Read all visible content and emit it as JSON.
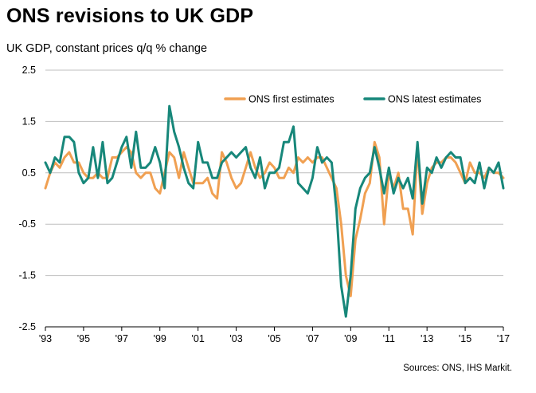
{
  "header": {
    "title": "ONS revisions to UK GDP",
    "subtitle": "UK GDP, constant prices q/q % change"
  },
  "footer": {
    "source": "Sources: ONS, IHS Markit."
  },
  "colors": {
    "first": "#F0A052",
    "latest": "#17877A",
    "grid": "#bfbfbf"
  },
  "chart_data": {
    "type": "line",
    "title": "ONS revisions to UK GDP",
    "ylabel": "UK GDP, constant prices q/q % change",
    "ylim": [
      -2.5,
      2.5
    ],
    "yticks": [
      "2.5",
      "1.5",
      "0.5",
      "-0.5",
      "-1.5",
      "-2.5"
    ],
    "xlim": [
      1993,
      2017
    ],
    "xticks": [
      {
        "value": 1993,
        "label": "'93"
      },
      {
        "value": 1995,
        "label": "'95"
      },
      {
        "value": 1997,
        "label": "'97"
      },
      {
        "value": 1999,
        "label": "'99"
      },
      {
        "value": 2001,
        "label": "'01"
      },
      {
        "value": 2003,
        "label": "'03"
      },
      {
        "value": 2005,
        "label": "'05"
      },
      {
        "value": 2007,
        "label": "'07"
      },
      {
        "value": 2009,
        "label": "'09"
      },
      {
        "value": 2011,
        "label": "'11"
      },
      {
        "value": 2013,
        "label": "'13"
      },
      {
        "value": 2015,
        "label": "'15"
      },
      {
        "value": 2017,
        "label": "'17"
      }
    ],
    "grid": "horizontal",
    "legend_position": "top-right",
    "series": [
      {
        "name": "ONS first estimates",
        "points": [
          [
            1993.0,
            0.2
          ],
          [
            1993.25,
            0.5
          ],
          [
            1993.5,
            0.7
          ],
          [
            1993.75,
            0.6
          ],
          [
            1994.0,
            0.8
          ],
          [
            1994.25,
            0.9
          ],
          [
            1994.5,
            0.7
          ],
          [
            1994.75,
            0.7
          ],
          [
            1995.0,
            0.5
          ],
          [
            1995.25,
            0.4
          ],
          [
            1995.5,
            0.4
          ],
          [
            1995.75,
            0.5
          ],
          [
            1996.0,
            0.4
          ],
          [
            1996.25,
            0.4
          ],
          [
            1996.5,
            0.8
          ],
          [
            1996.75,
            0.8
          ],
          [
            1997.0,
            0.9
          ],
          [
            1997.25,
            1.0
          ],
          [
            1997.5,
            0.9
          ],
          [
            1997.75,
            0.5
          ],
          [
            1998.0,
            0.4
          ],
          [
            1998.25,
            0.5
          ],
          [
            1998.5,
            0.5
          ],
          [
            1998.75,
            0.2
          ],
          [
            1999.0,
            0.1
          ],
          [
            1999.25,
            0.5
          ],
          [
            1999.5,
            0.9
          ],
          [
            1999.75,
            0.8
          ],
          [
            2000.0,
            0.4
          ],
          [
            2000.25,
            0.9
          ],
          [
            2000.5,
            0.6
          ],
          [
            2000.75,
            0.3
          ],
          [
            2001.0,
            0.3
          ],
          [
            2001.25,
            0.3
          ],
          [
            2001.5,
            0.4
          ],
          [
            2001.75,
            0.1
          ],
          [
            2002.0,
            0.0
          ],
          [
            2002.25,
            0.9
          ],
          [
            2002.5,
            0.7
          ],
          [
            2002.75,
            0.4
          ],
          [
            2003.0,
            0.2
          ],
          [
            2003.25,
            0.3
          ],
          [
            2003.5,
            0.6
          ],
          [
            2003.75,
            0.9
          ],
          [
            2004.0,
            0.6
          ],
          [
            2004.25,
            0.4
          ],
          [
            2004.5,
            0.5
          ],
          [
            2004.75,
            0.7
          ],
          [
            2005.0,
            0.6
          ],
          [
            2005.25,
            0.4
          ],
          [
            2005.5,
            0.4
          ],
          [
            2005.75,
            0.6
          ],
          [
            2006.0,
            0.5
          ],
          [
            2006.25,
            0.8
          ],
          [
            2006.5,
            0.7
          ],
          [
            2006.75,
            0.8
          ],
          [
            2007.0,
            0.7
          ],
          [
            2007.25,
            0.8
          ],
          [
            2007.5,
            0.8
          ],
          [
            2007.75,
            0.6
          ],
          [
            2008.0,
            0.4
          ],
          [
            2008.25,
            0.2
          ],
          [
            2008.5,
            -0.5
          ],
          [
            2008.75,
            -1.5
          ],
          [
            2009.0,
            -1.9
          ],
          [
            2009.25,
            -0.8
          ],
          [
            2009.5,
            -0.4
          ],
          [
            2009.75,
            0.1
          ],
          [
            2010.0,
            0.3
          ],
          [
            2010.25,
            1.1
          ],
          [
            2010.5,
            0.8
          ],
          [
            2010.75,
            -0.5
          ],
          [
            2011.0,
            0.5
          ],
          [
            2011.25,
            0.2
          ],
          [
            2011.5,
            0.5
          ],
          [
            2011.75,
            -0.2
          ],
          [
            2012.0,
            -0.2
          ],
          [
            2012.25,
            -0.7
          ],
          [
            2012.5,
            1.0
          ],
          [
            2012.75,
            -0.3
          ],
          [
            2013.0,
            0.3
          ],
          [
            2013.25,
            0.6
          ],
          [
            2013.5,
            0.7
          ],
          [
            2013.75,
            0.7
          ],
          [
            2014.0,
            0.8
          ],
          [
            2014.25,
            0.8
          ],
          [
            2014.5,
            0.7
          ],
          [
            2014.75,
            0.5
          ],
          [
            2015.0,
            0.3
          ],
          [
            2015.25,
            0.7
          ],
          [
            2015.5,
            0.5
          ],
          [
            2015.75,
            0.5
          ],
          [
            2016.0,
            0.4
          ],
          [
            2016.25,
            0.6
          ],
          [
            2016.5,
            0.5
          ],
          [
            2016.75,
            0.5
          ],
          [
            2017.0,
            0.4
          ]
        ]
      },
      {
        "name": "ONS latest estimates",
        "points": [
          [
            1993.0,
            0.7
          ],
          [
            1993.25,
            0.5
          ],
          [
            1993.5,
            0.8
          ],
          [
            1993.75,
            0.7
          ],
          [
            1994.0,
            1.2
          ],
          [
            1994.25,
            1.2
          ],
          [
            1994.5,
            1.1
          ],
          [
            1994.75,
            0.5
          ],
          [
            1995.0,
            0.3
          ],
          [
            1995.25,
            0.4
          ],
          [
            1995.5,
            1.0
          ],
          [
            1995.75,
            0.4
          ],
          [
            1996.0,
            1.1
          ],
          [
            1996.25,
            0.3
          ],
          [
            1996.5,
            0.4
          ],
          [
            1996.75,
            0.7
          ],
          [
            1997.0,
            1.0
          ],
          [
            1997.25,
            1.2
          ],
          [
            1997.5,
            0.6
          ],
          [
            1997.75,
            1.3
          ],
          [
            1998.0,
            0.6
          ],
          [
            1998.25,
            0.6
          ],
          [
            1998.5,
            0.7
          ],
          [
            1998.75,
            1.0
          ],
          [
            1999.0,
            0.7
          ],
          [
            1999.25,
            0.2
          ],
          [
            1999.5,
            1.8
          ],
          [
            1999.75,
            1.3
          ],
          [
            2000.0,
            1.0
          ],
          [
            2000.25,
            0.6
          ],
          [
            2000.5,
            0.3
          ],
          [
            2000.75,
            0.2
          ],
          [
            2001.0,
            1.1
          ],
          [
            2001.25,
            0.7
          ],
          [
            2001.5,
            0.7
          ],
          [
            2001.75,
            0.4
          ],
          [
            2002.0,
            0.4
          ],
          [
            2002.25,
            0.7
          ],
          [
            2002.5,
            0.8
          ],
          [
            2002.75,
            0.9
          ],
          [
            2003.0,
            0.8
          ],
          [
            2003.25,
            0.9
          ],
          [
            2003.5,
            1.0
          ],
          [
            2003.75,
            0.6
          ],
          [
            2004.0,
            0.4
          ],
          [
            2004.25,
            0.8
          ],
          [
            2004.5,
            0.2
          ],
          [
            2004.75,
            0.5
          ],
          [
            2005.0,
            0.5
          ],
          [
            2005.25,
            0.6
          ],
          [
            2005.5,
            1.1
          ],
          [
            2005.75,
            1.1
          ],
          [
            2006.0,
            1.4
          ],
          [
            2006.25,
            0.3
          ],
          [
            2006.5,
            0.2
          ],
          [
            2006.75,
            0.1
          ],
          [
            2007.0,
            0.4
          ],
          [
            2007.25,
            1.0
          ],
          [
            2007.5,
            0.7
          ],
          [
            2007.75,
            0.8
          ],
          [
            2008.0,
            0.7
          ],
          [
            2008.25,
            -0.2
          ],
          [
            2008.5,
            -1.7
          ],
          [
            2008.75,
            -2.3
          ],
          [
            2009.0,
            -1.5
          ],
          [
            2009.25,
            -0.2
          ],
          [
            2009.5,
            0.2
          ],
          [
            2009.75,
            0.4
          ],
          [
            2010.0,
            0.5
          ],
          [
            2010.25,
            1.0
          ],
          [
            2010.5,
            0.6
          ],
          [
            2010.75,
            0.1
          ],
          [
            2011.0,
            0.6
          ],
          [
            2011.25,
            0.1
          ],
          [
            2011.5,
            0.4
          ],
          [
            2011.75,
            0.2
          ],
          [
            2012.0,
            0.4
          ],
          [
            2012.25,
            0.0
          ],
          [
            2012.5,
            1.1
          ],
          [
            2012.75,
            -0.1
          ],
          [
            2013.0,
            0.6
          ],
          [
            2013.25,
            0.5
          ],
          [
            2013.5,
            0.8
          ],
          [
            2013.75,
            0.6
          ],
          [
            2014.0,
            0.8
          ],
          [
            2014.25,
            0.9
          ],
          [
            2014.5,
            0.8
          ],
          [
            2014.75,
            0.8
          ],
          [
            2015.0,
            0.3
          ],
          [
            2015.25,
            0.4
          ],
          [
            2015.5,
            0.3
          ],
          [
            2015.75,
            0.7
          ],
          [
            2016.0,
            0.2
          ],
          [
            2016.25,
            0.6
          ],
          [
            2016.5,
            0.5
          ],
          [
            2016.75,
            0.7
          ],
          [
            2017.0,
            0.2
          ]
        ]
      }
    ]
  }
}
